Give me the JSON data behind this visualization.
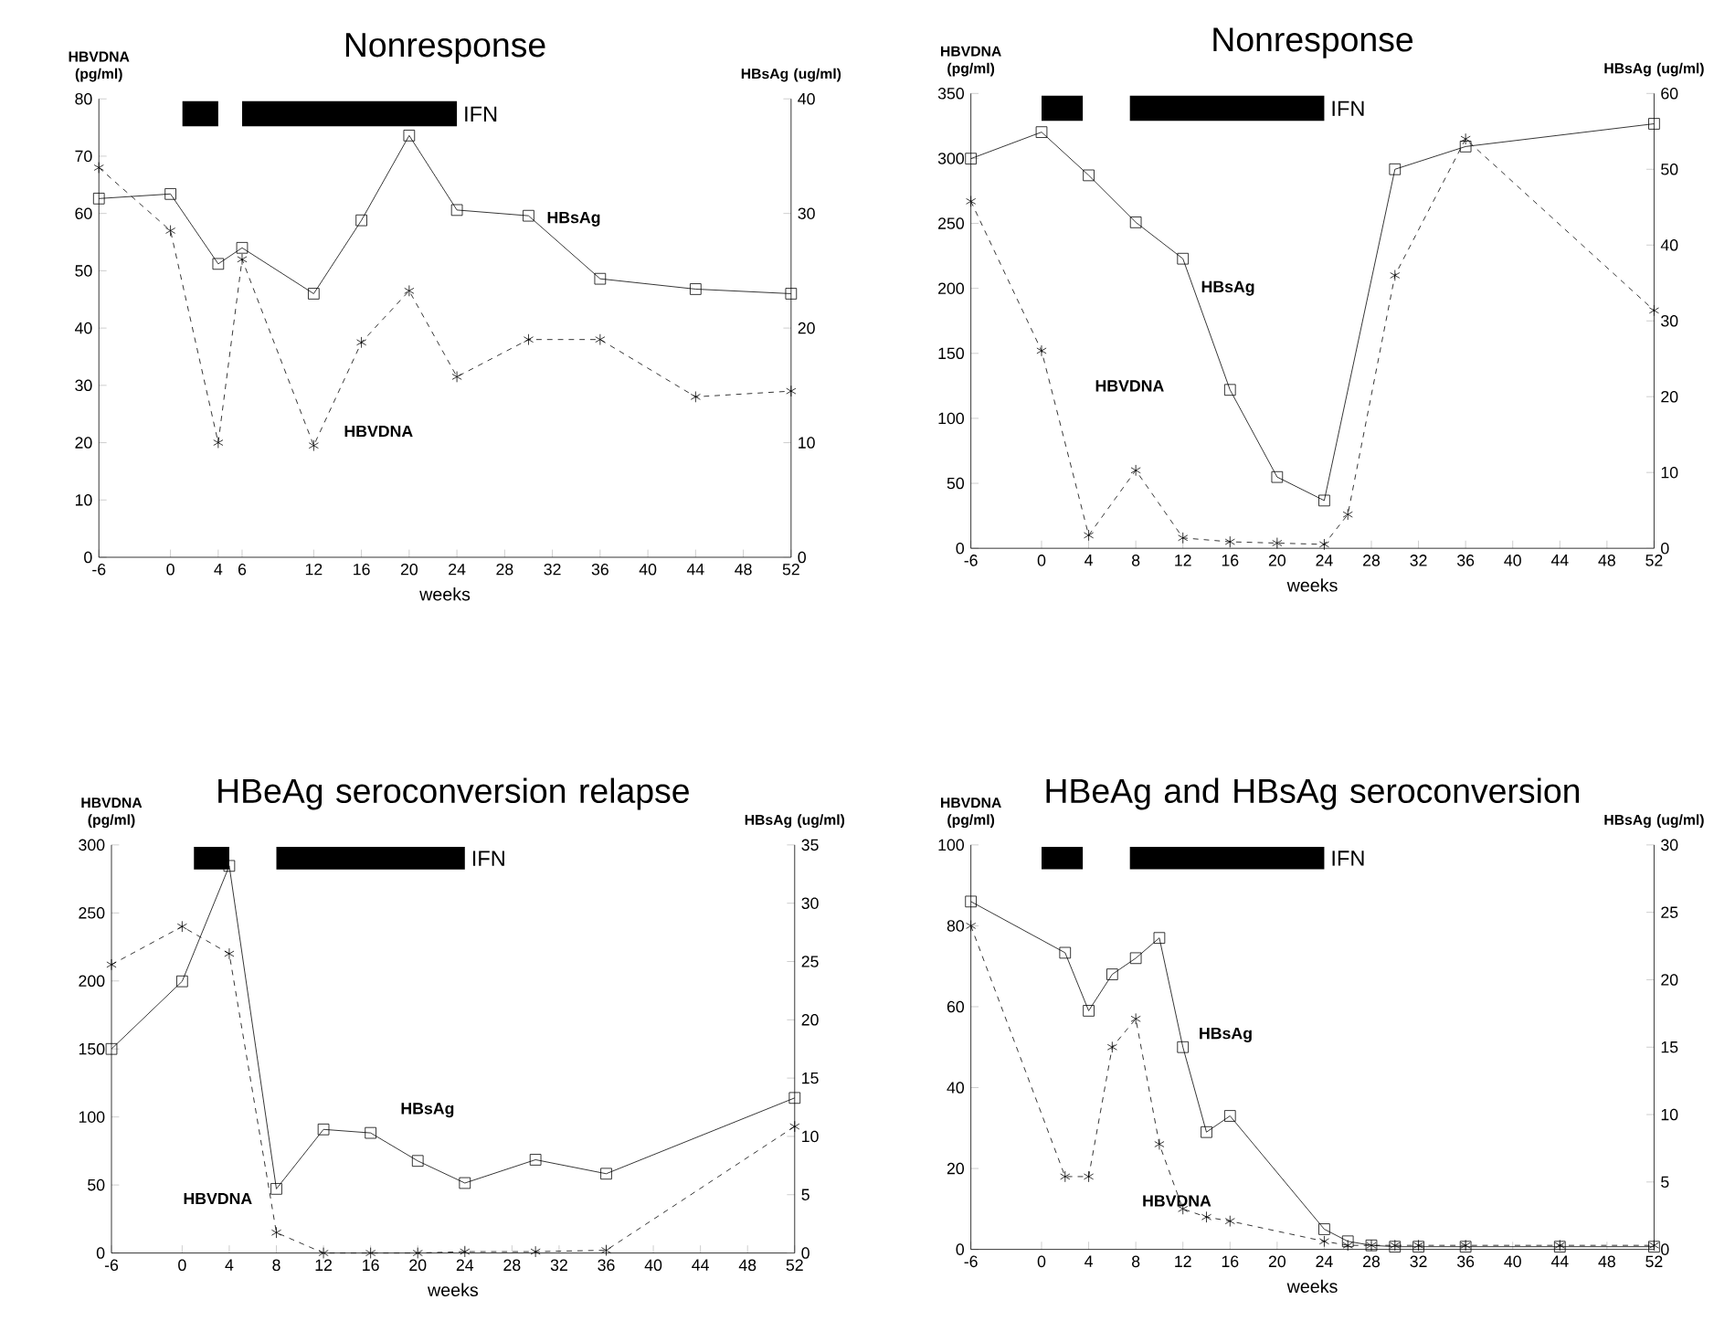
{
  "chart_data": [
    {
      "type": "line",
      "title": "Nonresponse",
      "xlabel": "weeks",
      "ylabel": "HBVDNA (pg/ml)",
      "y2label": "HBsAg (ug/ml)",
      "xlim": [
        -6,
        52
      ],
      "xticks": [
        -6,
        0,
        4,
        6,
        12,
        16,
        20,
        24,
        28,
        32,
        36,
        40,
        44,
        48,
        52
      ],
      "ylim": [
        0,
        80
      ],
      "yticks": [
        0,
        10,
        20,
        30,
        40,
        50,
        60,
        70,
        80
      ],
      "y2lim": [
        0,
        40
      ],
      "y2ticks": [
        0,
        10,
        20,
        30,
        40
      ],
      "series": [
        {
          "name": "HBsAg",
          "color": "#000000",
          "axis": "y2",
          "marker": "square",
          "line_style": "solid",
          "x": [
            -6,
            0,
            4,
            6,
            12,
            16,
            20,
            24,
            30,
            36,
            44,
            52
          ],
          "values": [
            31.3,
            31.7,
            25.6,
            27,
            23,
            29.4,
            36.8,
            30.3,
            29.8,
            24.3,
            23.4,
            23
          ]
        },
        {
          "name": "HBVDNA",
          "color": "#000000",
          "marker": "cross",
          "line_style": "dashed",
          "x": [
            -6,
            0,
            4,
            6,
            12,
            16,
            20,
            24,
            30,
            36,
            44,
            52
          ],
          "values": [
            68,
            57,
            20,
            52,
            19.5,
            37.5,
            46.5,
            31.5,
            38,
            38,
            28,
            29
          ]
        }
      ],
      "bands": [
        {
          "axis": "x",
          "from": 1,
          "to": 4,
          "color": "#000000"
        },
        {
          "axis": "x",
          "from": 6,
          "to": 24,
          "label": "IFN",
          "color": "#000000"
        }
      ]
    },
    {
      "type": "line",
      "title": "Nonresponse",
      "xlabel": "weeks",
      "ylabel": "HBVDNA (pg/ml)",
      "y2label": "HBsAg (ug/ml)",
      "xlim": [
        -6,
        52
      ],
      "xticks": [
        -6,
        0,
        4,
        8,
        12,
        16,
        20,
        24,
        28,
        32,
        36,
        40,
        44,
        48,
        52
      ],
      "ylim": [
        0,
        350
      ],
      "yticks": [
        0,
        50,
        100,
        150,
        200,
        250,
        300,
        350
      ],
      "y2lim": [
        0,
        60
      ],
      "y2ticks": [
        0,
        10,
        20,
        30,
        40,
        50,
        60
      ],
      "series": [
        {
          "name": "HBsAg",
          "color": "#000000",
          "axis": "y2",
          "marker": "square",
          "line_style": "solid",
          "x": [
            -6,
            0,
            4,
            8,
            12,
            16,
            20,
            24,
            30,
            36,
            52
          ],
          "values": [
            51.4,
            54.9,
            49.2,
            43,
            38.2,
            20.9,
            9.4,
            6.3,
            50,
            53,
            56
          ]
        },
        {
          "name": "HBVDNA",
          "color": "#000000",
          "marker": "cross",
          "line_style": "dashed",
          "x": [
            -6,
            0,
            4,
            8,
            12,
            16,
            20,
            24,
            26,
            30,
            36,
            52
          ],
          "values": [
            267,
            152,
            10,
            60,
            8,
            5,
            4,
            3,
            26,
            210,
            315,
            183
          ]
        }
      ],
      "bands": [
        {
          "axis": "x",
          "from": 0,
          "to": 3.5,
          "color": "#000000"
        },
        {
          "axis": "x",
          "from": 7.5,
          "to": 24,
          "label": "IFN",
          "color": "#000000"
        }
      ]
    },
    {
      "type": "line",
      "title": "HBeAg seroconversion relapse",
      "xlabel": "weeks",
      "ylabel": "HBVDNA (pg/ml)",
      "y2label": "HBsAg (ug/ml)",
      "xlim": [
        -6,
        52
      ],
      "xticks": [
        -6,
        0,
        4,
        8,
        12,
        16,
        20,
        24,
        28,
        32,
        36,
        40,
        44,
        48,
        52
      ],
      "ylim": [
        0,
        300
      ],
      "yticks": [
        0,
        50,
        100,
        150,
        200,
        250,
        300
      ],
      "y2lim": [
        0,
        35
      ],
      "y2ticks": [
        0,
        5,
        10,
        15,
        20,
        25,
        30,
        35
      ],
      "series": [
        {
          "name": "HBsAg",
          "color": "#000000",
          "axis": "y2",
          "marker": "square",
          "line_style": "solid",
          "x": [
            -6,
            0,
            4,
            8,
            12,
            16,
            20,
            24,
            30,
            36,
            52
          ],
          "values": [
            17.5,
            23.3,
            33.2,
            5.5,
            10.6,
            10.3,
            7.9,
            6,
            8,
            6.8,
            13.3
          ]
        },
        {
          "name": "HBVDNA",
          "color": "#000000",
          "marker": "cross",
          "line_style": "dashed",
          "x": [
            -6,
            0,
            4,
            8,
            12,
            16,
            20,
            24,
            30,
            36,
            52
          ],
          "values": [
            212,
            240,
            220,
            15,
            0,
            0,
            0,
            1,
            1,
            2,
            93
          ]
        }
      ],
      "bands": [
        {
          "axis": "x",
          "from": 1,
          "to": 4,
          "color": "#000000"
        },
        {
          "axis": "x",
          "from": 8,
          "to": 24,
          "label": "IFN",
          "color": "#000000"
        }
      ]
    },
    {
      "type": "line",
      "title": "HBeAg and HBsAg seroconversion",
      "xlabel": "weeks",
      "ylabel": "HBVDNA (pg/ml)",
      "y2label": "HBsAg (ug/ml)",
      "xlim": [
        -6,
        52
      ],
      "xticks": [
        -6,
        0,
        4,
        8,
        12,
        16,
        20,
        24,
        28,
        32,
        36,
        40,
        44,
        48,
        52
      ],
      "ylim": [
        0,
        100
      ],
      "yticks": [
        0,
        20,
        40,
        60,
        80,
        100
      ],
      "y2lim": [
        0,
        30
      ],
      "y2ticks": [
        0,
        5,
        10,
        15,
        20,
        25,
        30
      ],
      "series": [
        {
          "name": "HBsAg",
          "color": "#000000",
          "axis": "y2",
          "marker": "square",
          "line_style": "solid",
          "x": [
            -6,
            2,
            4,
            6,
            8,
            10,
            12,
            14,
            16,
            24,
            26,
            28,
            30,
            32,
            36,
            44,
            52
          ],
          "values": [
            25.8,
            22,
            17.7,
            20.4,
            21.6,
            23.1,
            15,
            8.7,
            9.9,
            1.5,
            0.6,
            0.3,
            0.2,
            0.2,
            0.2,
            0.2,
            0.2
          ]
        },
        {
          "name": "HBVDNA",
          "color": "#000000",
          "marker": "cross",
          "line_style": "dashed",
          "x": [
            -6,
            2,
            4,
            6,
            8,
            10,
            12,
            14,
            16,
            24,
            26,
            28,
            30,
            32,
            36,
            44,
            52
          ],
          "values": [
            80,
            18,
            18,
            50,
            57,
            26,
            10,
            8,
            7,
            2,
            1,
            1,
            1,
            1,
            1,
            1,
            1
          ]
        }
      ],
      "bands": [
        {
          "axis": "x",
          "from": 0,
          "to": 3.5,
          "color": "#000000"
        },
        {
          "axis": "x",
          "from": 7.5,
          "to": 24,
          "label": "IFN",
          "color": "#000000"
        }
      ]
    }
  ]
}
